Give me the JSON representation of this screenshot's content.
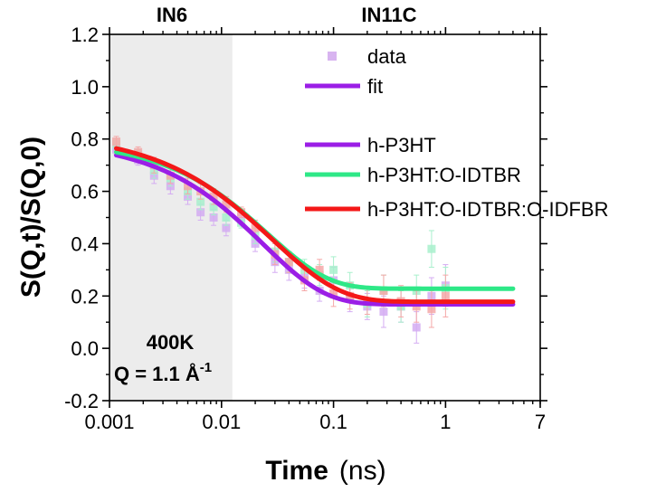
{
  "chart_data": {
    "type": "scatter",
    "x_scale": "log",
    "xlim": [
      0.001,
      7
    ],
    "ylim": [
      -0.2,
      1.2
    ],
    "xlabel_main": "Time",
    "xlabel_unit": "(ns)",
    "ylabel": "S(Q,t)/S(Q,0)",
    "x_tick_labels": [
      "0.001",
      "0.01",
      "0.1",
      "1",
      "7"
    ],
    "x_ticks": [
      0.001,
      0.01,
      0.1,
      1,
      7
    ],
    "y_tick_labels": [
      "-0.2",
      "0.0",
      "0.2",
      "0.4",
      "0.6",
      "0.8",
      "1.0",
      "1.2"
    ],
    "y_ticks": [
      -0.2,
      0.0,
      0.2,
      0.4,
      0.6,
      0.8,
      1.0,
      1.2
    ],
    "regions": [
      {
        "label": "IN6",
        "x_start": 0.001,
        "x_end": 0.0125,
        "color": "#ececec"
      },
      {
        "label": "IN11C",
        "x_start": 0.0125,
        "x_end": 7,
        "color": "#ffffff"
      }
    ],
    "annotations": {
      "temperature": "400K",
      "q_prefix": "Q = 1.1 Å",
      "q_superscript": "-1"
    },
    "legend": {
      "placement": "top-right",
      "entries": [
        {
          "label": "data",
          "kind": "marker",
          "color": "#d8b4f0"
        },
        {
          "label": "fit",
          "kind": "line",
          "color": "#9b1ee6"
        },
        {
          "label": "h-P3HT",
          "kind": "line",
          "color": "#9b1ee6"
        },
        {
          "label": "h-P3HT:O-IDTBR",
          "kind": "line",
          "color": "#2ee887"
        },
        {
          "label": "h-P3HT:O-IDTBR:O-IDFBR",
          "kind": "line",
          "color": "#f41818"
        }
      ]
    },
    "series": [
      {
        "name": "h-P3HT",
        "color": "#9b1ee6",
        "marker_color": "#d4acf2",
        "fit": {
          "A": 0.795,
          "B": 0.168,
          "tau": 0.0235,
          "beta": 0.78,
          "x_start": 0.00115,
          "x_end": 4
        },
        "points": [
          {
            "x": 0.00115,
            "y": 0.76,
            "err": 0.02
          },
          {
            "x": 0.0018,
            "y": 0.72,
            "err": 0.02
          },
          {
            "x": 0.0025,
            "y": 0.66,
            "err": 0.03
          },
          {
            "x": 0.0035,
            "y": 0.62,
            "err": 0.03
          },
          {
            "x": 0.005,
            "y": 0.58,
            "err": 0.03
          },
          {
            "x": 0.0065,
            "y": 0.52,
            "err": 0.03
          },
          {
            "x": 0.0085,
            "y": 0.5,
            "err": 0.03
          },
          {
            "x": 0.011,
            "y": 0.46,
            "err": 0.03
          },
          {
            "x": 0.015,
            "y": 0.5,
            "err": 0.02
          },
          {
            "x": 0.02,
            "y": 0.4,
            "err": 0.03
          },
          {
            "x": 0.03,
            "y": 0.33,
            "err": 0.04
          },
          {
            "x": 0.04,
            "y": 0.3,
            "err": 0.04
          },
          {
            "x": 0.055,
            "y": 0.27,
            "err": 0.04
          },
          {
            "x": 0.075,
            "y": 0.22,
            "err": 0.04
          },
          {
            "x": 0.1,
            "y": 0.26,
            "err": 0.05
          },
          {
            "x": 0.14,
            "y": 0.19,
            "err": 0.05
          },
          {
            "x": 0.2,
            "y": 0.16,
            "err": 0.05
          },
          {
            "x": 0.28,
            "y": 0.14,
            "err": 0.06
          },
          {
            "x": 0.4,
            "y": 0.16,
            "err": 0.06
          },
          {
            "x": 0.55,
            "y": 0.08,
            "err": 0.06
          },
          {
            "x": 0.75,
            "y": 0.2,
            "err": 0.07
          },
          {
            "x": 1.0,
            "y": 0.24,
            "err": 0.08
          }
        ]
      },
      {
        "name": "h-P3HT:O-IDTBR",
        "color": "#2ee887",
        "marker_color": "#a8f0cc",
        "fit": {
          "A": 0.795,
          "B": 0.228,
          "tau": 0.026,
          "beta": 0.8,
          "x_start": 0.00115,
          "x_end": 4
        },
        "points": [
          {
            "x": 0.00115,
            "y": 0.78,
            "err": 0.02
          },
          {
            "x": 0.0018,
            "y": 0.74,
            "err": 0.02
          },
          {
            "x": 0.0025,
            "y": 0.68,
            "err": 0.03
          },
          {
            "x": 0.0035,
            "y": 0.65,
            "err": 0.03
          },
          {
            "x": 0.005,
            "y": 0.6,
            "err": 0.03
          },
          {
            "x": 0.0065,
            "y": 0.56,
            "err": 0.03
          },
          {
            "x": 0.0085,
            "y": 0.54,
            "err": 0.03
          },
          {
            "x": 0.011,
            "y": 0.5,
            "err": 0.03
          },
          {
            "x": 0.015,
            "y": 0.48,
            "err": 0.02
          },
          {
            "x": 0.02,
            "y": 0.43,
            "err": 0.03
          },
          {
            "x": 0.03,
            "y": 0.37,
            "err": 0.04
          },
          {
            "x": 0.04,
            "y": 0.33,
            "err": 0.04
          },
          {
            "x": 0.055,
            "y": 0.3,
            "err": 0.04
          },
          {
            "x": 0.075,
            "y": 0.28,
            "err": 0.04
          },
          {
            "x": 0.1,
            "y": 0.3,
            "err": 0.05
          },
          {
            "x": 0.14,
            "y": 0.24,
            "err": 0.05
          },
          {
            "x": 0.2,
            "y": 0.17,
            "err": 0.05
          },
          {
            "x": 0.28,
            "y": 0.22,
            "err": 0.06
          },
          {
            "x": 0.4,
            "y": 0.16,
            "err": 0.06
          },
          {
            "x": 0.55,
            "y": 0.22,
            "err": 0.06
          },
          {
            "x": 0.75,
            "y": 0.38,
            "err": 0.07
          },
          {
            "x": 1.0,
            "y": 0.23,
            "err": 0.08
          }
        ]
      },
      {
        "name": "h-P3HT:O-IDTBR:O-IDFBR",
        "color": "#f41818",
        "marker_color": "#f5a8a8",
        "fit": {
          "A": 0.825,
          "B": 0.178,
          "tau": 0.0285,
          "beta": 0.72,
          "x_start": 0.00115,
          "x_end": 4
        },
        "points": [
          {
            "x": 0.00115,
            "y": 0.79,
            "err": 0.02
          },
          {
            "x": 0.0018,
            "y": 0.75,
            "err": 0.02
          },
          {
            "x": 0.0025,
            "y": 0.7,
            "err": 0.03
          },
          {
            "x": 0.0035,
            "y": 0.66,
            "err": 0.03
          },
          {
            "x": 0.005,
            "y": 0.62,
            "err": 0.03
          },
          {
            "x": 0.0065,
            "y": 0.6,
            "err": 0.03
          },
          {
            "x": 0.0085,
            "y": 0.58,
            "err": 0.03
          },
          {
            "x": 0.011,
            "y": 0.55,
            "err": 0.03
          },
          {
            "x": 0.015,
            "y": 0.52,
            "err": 0.02
          },
          {
            "x": 0.02,
            "y": 0.46,
            "err": 0.03
          },
          {
            "x": 0.03,
            "y": 0.36,
            "err": 0.04
          },
          {
            "x": 0.04,
            "y": 0.33,
            "err": 0.04
          },
          {
            "x": 0.055,
            "y": 0.26,
            "err": 0.04
          },
          {
            "x": 0.075,
            "y": 0.3,
            "err": 0.04
          },
          {
            "x": 0.1,
            "y": 0.21,
            "err": 0.05
          },
          {
            "x": 0.14,
            "y": 0.2,
            "err": 0.05
          },
          {
            "x": 0.2,
            "y": 0.18,
            "err": 0.05
          },
          {
            "x": 0.28,
            "y": 0.22,
            "err": 0.06
          },
          {
            "x": 0.4,
            "y": 0.18,
            "err": 0.06
          },
          {
            "x": 0.55,
            "y": 0.16,
            "err": 0.06
          },
          {
            "x": 0.75,
            "y": 0.15,
            "err": 0.07
          },
          {
            "x": 1.0,
            "y": 0.2,
            "err": 0.08
          }
        ]
      }
    ]
  }
}
